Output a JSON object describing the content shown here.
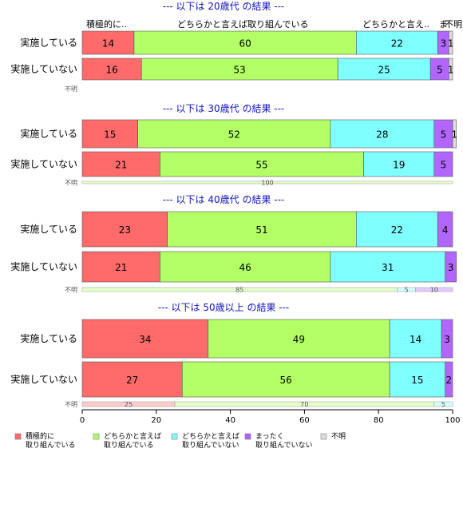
{
  "chart_data": {
    "type": "bar",
    "orientation": "horizontal-stacked",
    "xlim": [
      0,
      100
    ],
    "xticks": [
      0,
      20,
      40,
      60,
      80,
      100
    ],
    "colors": [
      "#ff6b6b",
      "#b2ff66",
      "#80ffff",
      "#b266ff",
      "#dddddd"
    ],
    "header_labels": [
      "積極的に..",
      "どちらかと言えば取り組んでいる",
      "どちらかと言え..",
      "ま",
      "不明"
    ],
    "legend": [
      {
        "line1": "積極的に",
        "line2": "取り組んでいる",
        "color": "#ff6b6b"
      },
      {
        "line1": "どちらかと言えば",
        "line2": "取り組んでいる",
        "color": "#b2ff66"
      },
      {
        "line1": "どちらかと言えば",
        "line2": "取り組んでいない",
        "color": "#80ffff"
      },
      {
        "line1": "まったく",
        "line2": "取り組んでいない",
        "color": "#b266ff"
      },
      {
        "line1": "不明",
        "line2": "",
        "color": "#dddddd"
      }
    ],
    "sections": [
      {
        "title": "--- 以下は 20歳代 の結果 ---",
        "rows": [
          {
            "label": "実施している",
            "values": [
              14,
              60,
              22,
              3,
              1
            ]
          },
          {
            "label": "実施していない",
            "values": [
              16,
              53,
              25,
              5,
              1
            ]
          }
        ],
        "unknown": {
          "label": "不明",
          "values": [],
          "labels": []
        }
      },
      {
        "title": "--- 以下は 30歳代 の結果 ---",
        "rows": [
          {
            "label": "実施している",
            "values": [
              15,
              52,
              28,
              5,
              1
            ]
          },
          {
            "label": "実施していない",
            "values": [
              21,
              55,
              19,
              5,
              0
            ]
          }
        ],
        "unknown": {
          "label": "不明",
          "values": [
            0,
            100,
            0,
            0,
            0
          ],
          "labels": [
            "",
            "100",
            "",
            "",
            ""
          ]
        }
      },
      {
        "title": "--- 以下は 40歳代 の結果 ---",
        "rows": [
          {
            "label": "実施している",
            "values": [
              23,
              51,
              22,
              4,
              0
            ]
          },
          {
            "label": "実施していない",
            "values": [
              21,
              46,
              31,
              3,
              0
            ]
          }
        ],
        "unknown": {
          "label": "不明",
          "values": [
            0,
            85,
            5,
            10,
            0
          ],
          "labels": [
            "",
            "85",
            "5",
            "10",
            ""
          ]
        }
      },
      {
        "title": "--- 以下は 50歳以上 の結果 ---",
        "rows": [
          {
            "label": "実施している",
            "values": [
              34,
              49,
              14,
              3,
              0
            ]
          },
          {
            "label": "実施していない",
            "values": [
              27,
              56,
              15,
              2,
              0
            ]
          }
        ],
        "unknown": {
          "label": "不明",
          "values": [
            25,
            70,
            5,
            0,
            0
          ],
          "labels": [
            "25",
            "70",
            "5",
            "",
            ""
          ]
        }
      }
    ]
  }
}
